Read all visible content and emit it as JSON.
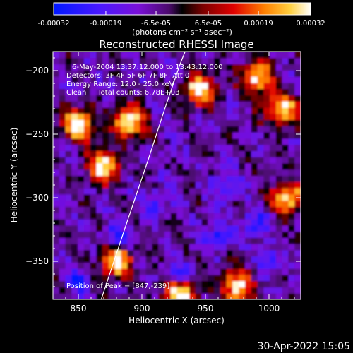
{
  "chart_data": {
    "type": "heatmap",
    "title": "Reconstructed RHESSI Image",
    "xlabel": "Heliocentric X (arcsec)",
    "ylabel": "Heliocentric Y (arcsec)",
    "xlim": [
      830,
      1025
    ],
    "ylim": [
      -380,
      -185
    ],
    "xticks": [
      "850",
      "900",
      "950",
      "1000"
    ],
    "xtick_values": [
      850,
      900,
      950,
      1000
    ],
    "yticks": [
      "-200",
      "-250",
      "-300",
      "-350"
    ],
    "ytick_values": [
      -200,
      -250,
      -300,
      -350
    ],
    "colorbar": {
      "ticks": [
        "-0.00032",
        "-0.00019",
        "-6.5e-05",
        "6.5e-05",
        "0.00019",
        "0.00032"
      ],
      "tick_values": [
        -0.00032,
        -0.00019,
        -6.5e-05,
        6.5e-05,
        0.00019,
        0.00032
      ],
      "range": [
        -0.00032,
        0.00032
      ],
      "units": "(photons cm⁻² s⁻¹ asec⁻²)"
    },
    "annotations": {
      "time": "6-May-2004 13:37:12.000 to 13:43:12.000",
      "detectors": "Detectors: 3F 4F 5F 6F 7F 8F, Att 0",
      "energy": "Energy Range: 12.0 - 25.0 keV",
      "clean": "Clean     Total counts: 6.78E+03",
      "peak": "Position of Peak = [847,-239]"
    },
    "limb_curve": [
      [
        868,
        -380
      ],
      [
        888,
        -320
      ],
      [
        905,
        -270
      ],
      [
        918,
        -230
      ],
      [
        930,
        -195
      ],
      [
        934,
        -185
      ]
    ],
    "hot_spots": [
      [
        850,
        -242
      ],
      [
        890,
        -240
      ],
      [
        945,
        -215
      ],
      [
        990,
        -205
      ],
      [
        1010,
        -230
      ],
      [
        870,
        -275
      ],
      [
        930,
        -375
      ],
      [
        975,
        -370
      ],
      [
        880,
        -350
      ],
      [
        1015,
        -300
      ]
    ],
    "cold_spots": [
      [
        880,
        -330
      ],
      [
        930,
        -360
      ],
      [
        1000,
        -350
      ],
      [
        965,
        -290
      ],
      [
        960,
        -330
      ],
      [
        910,
        -305
      ],
      [
        990,
        -320
      ],
      [
        850,
        -365
      ]
    ]
  },
  "footer": {
    "timestamp": "30-Apr-2022 15:05"
  },
  "colors": {
    "background": "#000000",
    "axis": "#ffffff"
  }
}
